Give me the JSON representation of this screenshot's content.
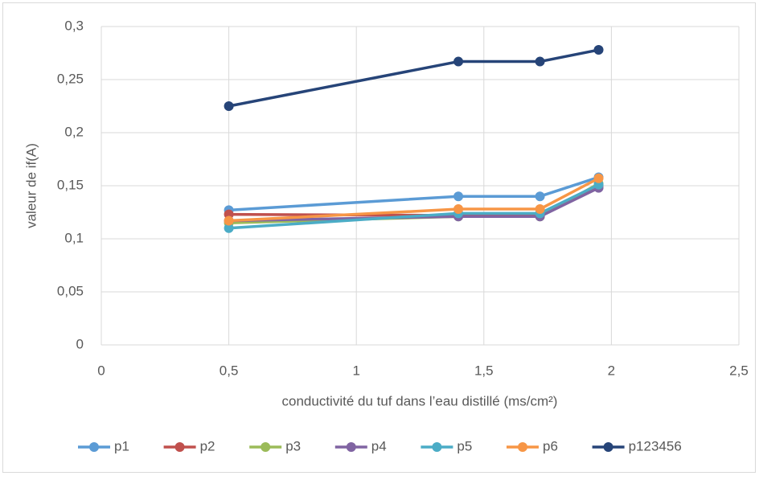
{
  "chart_data": {
    "type": "line",
    "x_label": "conductivité du tuf dans l’eau distillé (ms/cm²)",
    "y_label": "valeur de if(A)",
    "x": [
      0.5,
      1.4,
      1.72,
      1.95
    ],
    "series": [
      {
        "name": "p1",
        "color": "#5b9bd5",
        "values": [
          0.127,
          0.14,
          0.14,
          0.158
        ]
      },
      {
        "name": "p2",
        "color": "#c0504d",
        "values": [
          0.123,
          0.122,
          0.122,
          0.15
        ]
      },
      {
        "name": "p3",
        "color": "#9bbb59",
        "values": [
          0.115,
          0.121,
          0.121,
          0.152
        ]
      },
      {
        "name": "p4",
        "color": "#8064a2",
        "values": [
          0.117,
          0.121,
          0.121,
          0.148
        ]
      },
      {
        "name": "p5",
        "color": "#4bacc6",
        "values": [
          0.11,
          0.124,
          0.124,
          0.151
        ]
      },
      {
        "name": "p6",
        "color": "#f79646",
        "values": [
          0.117,
          0.128,
          0.128,
          0.157
        ]
      },
      {
        "name": "p123456",
        "color": "#264478",
        "values": [
          0.225,
          0.267,
          0.267,
          0.278
        ]
      }
    ],
    "xlim": [
      0,
      2.5
    ],
    "xticks": [
      0,
      {
        "value": 0.5,
        "label": "0,5"
      },
      1,
      {
        "value": 1.5,
        "label": "1,5"
      },
      2,
      {
        "value": 2.5,
        "label": "2,5"
      }
    ],
    "ylim": [
      0,
      0.3
    ],
    "yticks": [
      0,
      {
        "value": 0.05,
        "label": "0,05"
      },
      {
        "value": 0.1,
        "label": "0,1"
      },
      {
        "value": 0.15,
        "label": "0,15"
      },
      {
        "value": 0.2,
        "label": "0,2"
      },
      {
        "value": 0.25,
        "label": "0,25"
      },
      {
        "value": 0.3,
        "label": "0,3"
      }
    ],
    "grid": true,
    "legend": "bottom"
  }
}
